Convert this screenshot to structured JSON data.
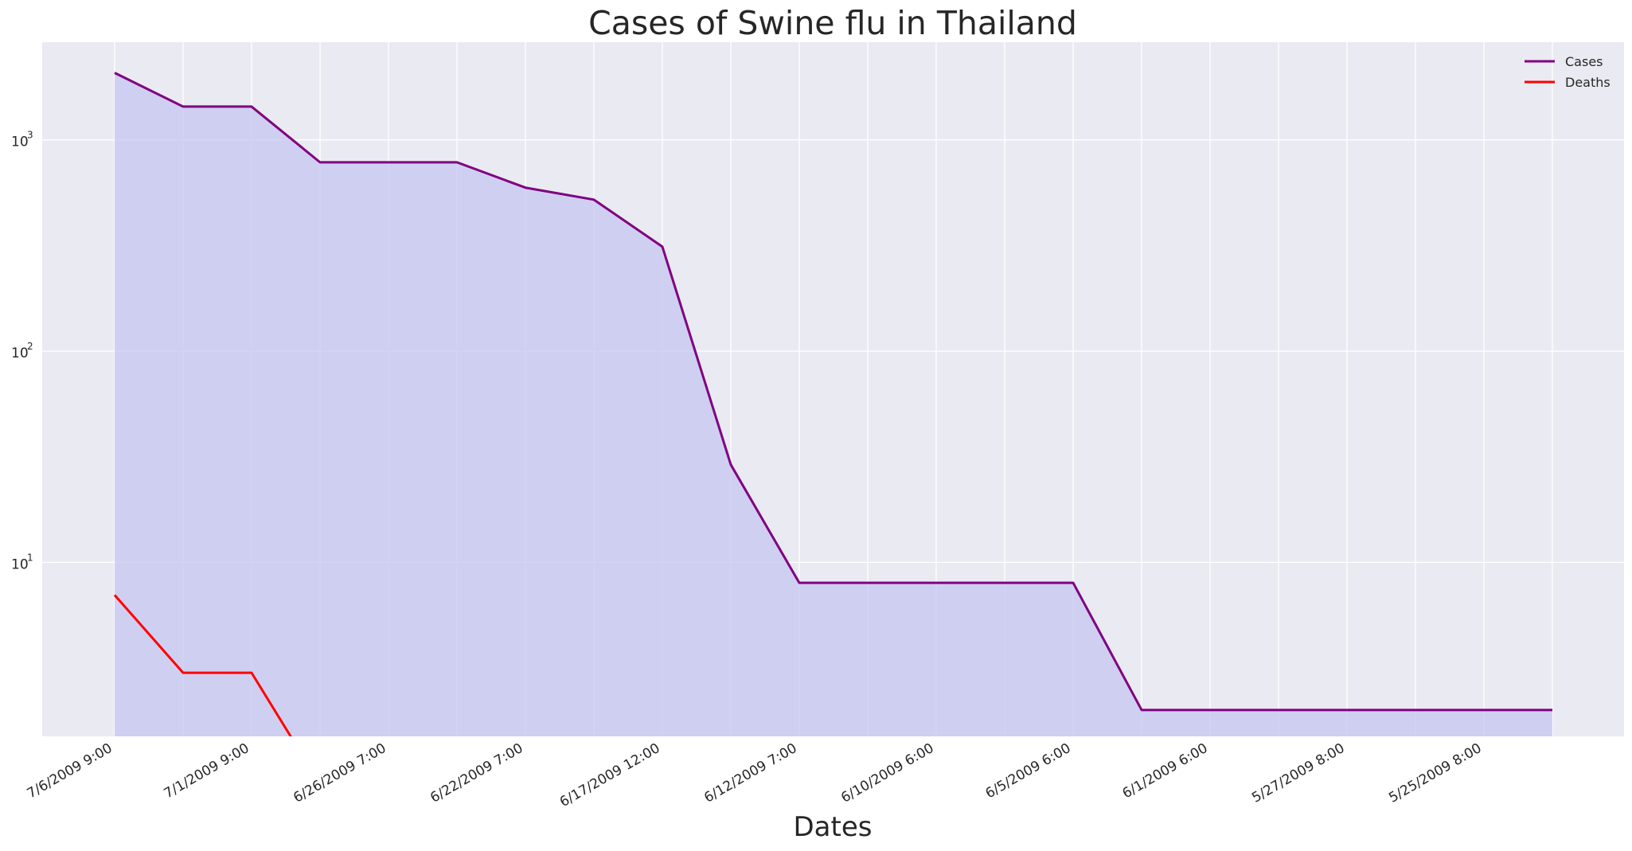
{
  "chart_data": {
    "type": "area",
    "title": "Cases of Swine flu in Thailand",
    "xlabel": "Dates",
    "ylabel": "",
    "yscale": "log",
    "ylim": [
      1.5,
      2900
    ],
    "y_ticks": [
      {
        "value": 10,
        "base": "10",
        "exp": "1"
      },
      {
        "value": 100,
        "base": "10",
        "exp": "2"
      },
      {
        "value": 1000,
        "base": "10",
        "exp": "3"
      }
    ],
    "grid": true,
    "legend_position": "top-right",
    "categories": [
      "7/6/2009 9:00",
      "",
      "7/1/2009 9:00",
      "",
      "6/26/2009 7:00",
      "",
      "6/22/2009 7:00",
      "",
      "6/17/2009 12:00",
      "",
      "6/12/2009 7:00",
      "",
      "6/10/2009 6:00",
      "",
      "6/5/2009 6:00",
      "",
      "6/1/2009 6:00",
      "",
      "5/27/2009 8:00",
      "",
      "5/25/2009 8:00",
      ""
    ],
    "x_tick_labels": [
      "7/6/2009 9:00",
      "7/1/2009 9:00",
      "6/26/2009 7:00",
      "6/22/2009 7:00",
      "6/17/2009 12:00",
      "6/12/2009 7:00",
      "6/10/2009 6:00",
      "6/5/2009 6:00",
      "6/1/2009 6:00",
      "5/27/2009 8:00",
      "5/25/2009 8:00"
    ],
    "series": [
      {
        "name": "Cases",
        "color": "#800080",
        "values": [
          2076,
          1437,
          1437,
          783,
          783,
          783,
          594,
          521,
          312,
          29,
          8,
          8,
          8,
          8,
          8,
          2,
          2,
          2,
          2,
          2,
          2,
          2
        ]
      },
      {
        "name": "Deaths",
        "color": "#ff0000",
        "values": [
          7,
          3,
          3,
          0,
          0,
          0,
          0,
          0,
          0,
          0,
          0,
          0,
          0,
          0,
          0,
          0,
          0,
          0,
          0,
          0,
          0,
          0
        ]
      }
    ],
    "fill_series": "Cases",
    "fill_color": "#c5c5f0"
  },
  "colors": {
    "plot_background": "#eaeaf2",
    "grid": "#ffffff",
    "fill": "#c5c5f0"
  }
}
